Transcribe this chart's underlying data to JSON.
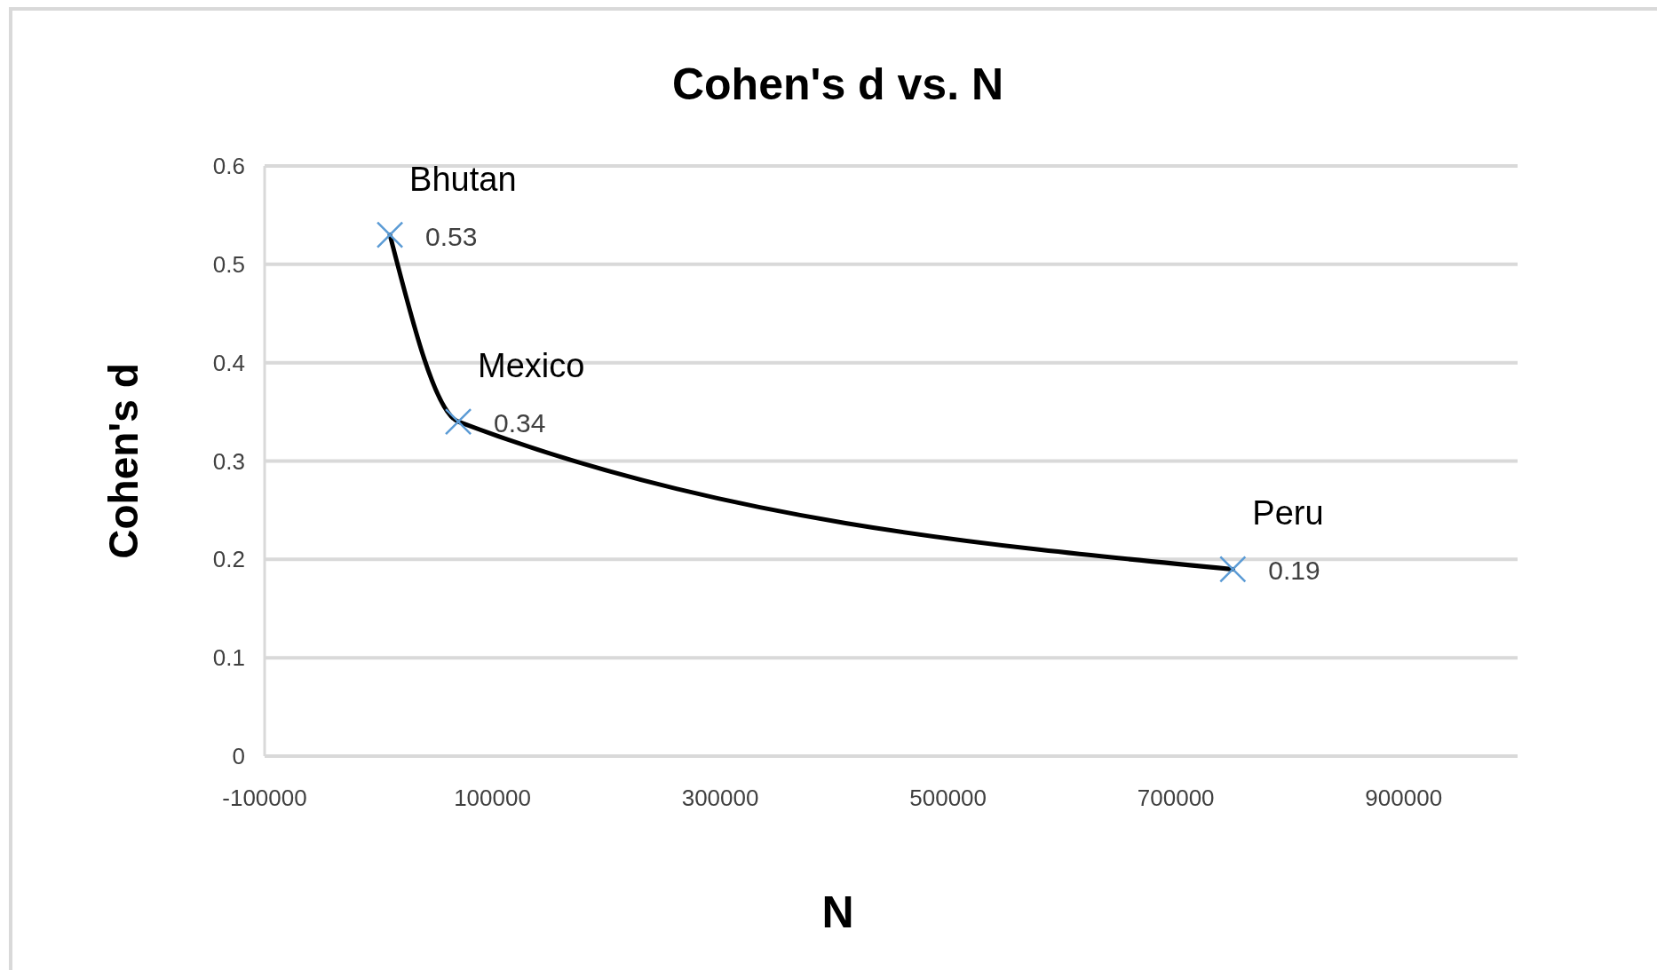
{
  "chart_data": {
    "type": "line",
    "title": "Cohen's d vs. N",
    "xlabel": "N",
    "ylabel": "Cohen's d",
    "x": [
      10000,
      70000,
      750000
    ],
    "series": [
      {
        "color": "#000000",
        "colors": [
          "#5b9bd5",
          "#5b9bd5",
          "#5b9bd5"
        ],
        "values": [
          0.53,
          0.34,
          0.19
        ]
      }
    ],
    "annotations": [
      {
        "text": "Bhutan",
        "x": 10000,
        "y": 0.53
      },
      {
        "text": "Mexico",
        "x": 70000,
        "y": 0.34
      },
      {
        "text": "Peru",
        "x": 750000,
        "y": 0.19
      }
    ],
    "xlim": [
      -100000,
      1000000
    ],
    "xticks": [
      -100000,
      100000,
      300000,
      500000,
      700000,
      900000
    ],
    "ylim": [
      0,
      0.6
    ],
    "yticks": [
      0,
      0.1,
      0.2,
      0.3,
      0.4,
      0.5,
      0.6
    ],
    "data_labels": true,
    "grid": "y",
    "marker": "cross",
    "line_style": "solid"
  }
}
